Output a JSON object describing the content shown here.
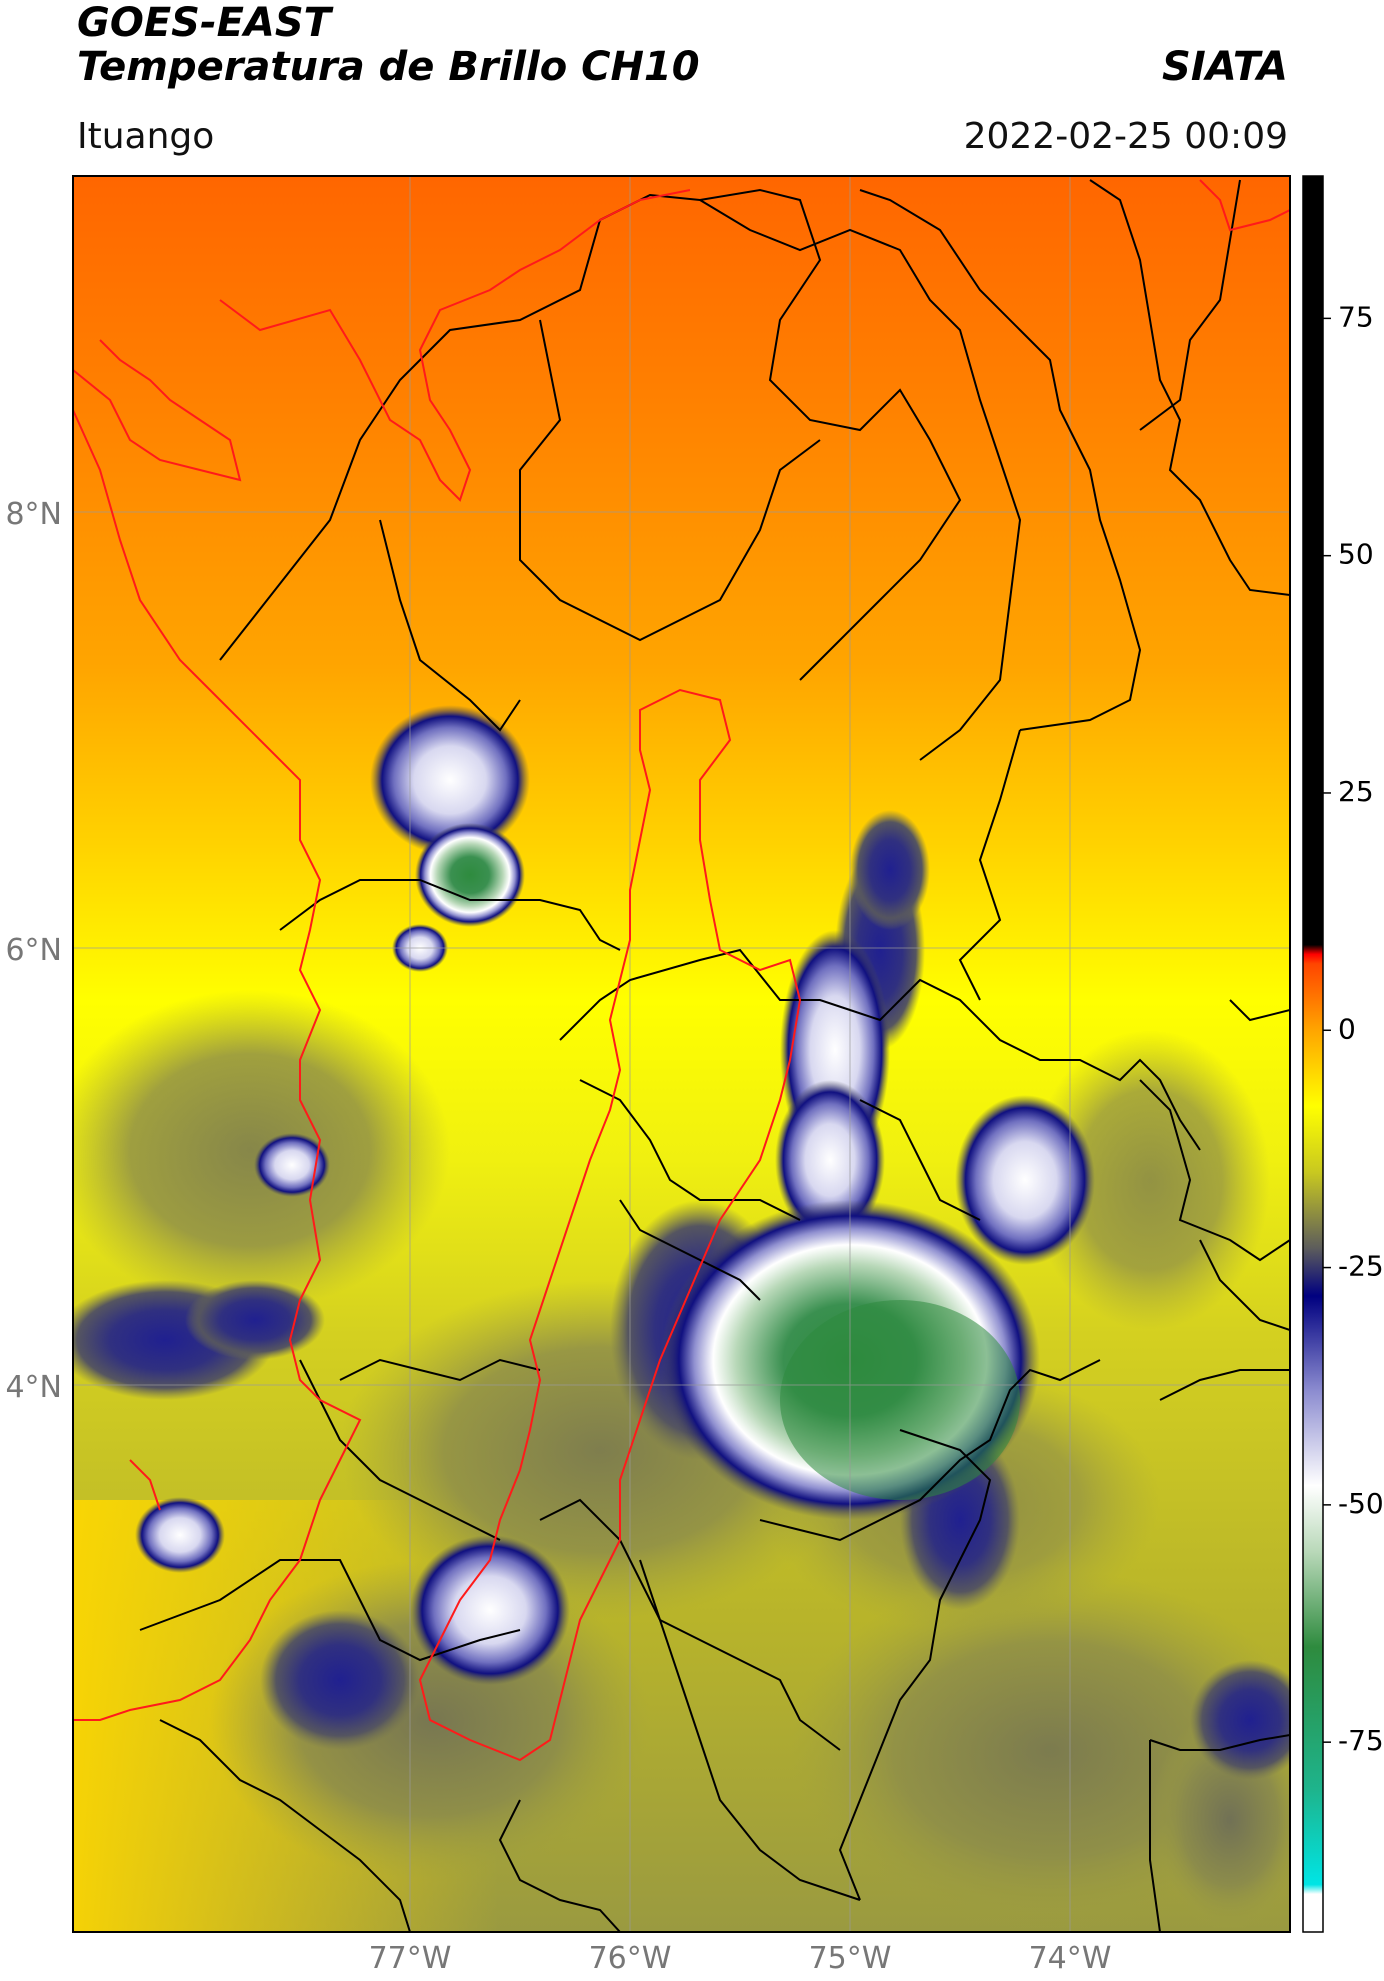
{
  "header": {
    "satellite": "GOES-EAST",
    "product": "Temperatura de Brillo CH10",
    "brand": "SIATA",
    "location": "Ituango",
    "datetime": "2022-02-25 00:09"
  },
  "map": {
    "extent": {
      "lon_min": -78.55,
      "lon_max": -72.95,
      "lat_min": 1.55,
      "lat_max": 9.55
    },
    "lat_ticks": [
      {
        "value": 8,
        "label": "8°N"
      },
      {
        "value": 6,
        "label": "6°N"
      },
      {
        "value": 4,
        "label": "4°N"
      }
    ],
    "lon_ticks": [
      {
        "value": -77,
        "label": "77°W"
      },
      {
        "value": -76,
        "label": "76°W"
      },
      {
        "value": -75,
        "label": "75°W"
      },
      {
        "value": -74,
        "label": "74°W"
      }
    ],
    "gridlines": true,
    "colors": {
      "coast": "#ff1a1a",
      "borders": "#000000",
      "grid": "#9a9a9a"
    }
  },
  "colorbar": {
    "range": [
      -95,
      90
    ],
    "ticks": [
      {
        "value": 75,
        "label": "75"
      },
      {
        "value": 50,
        "label": "50"
      },
      {
        "value": 25,
        "label": "25"
      },
      {
        "value": 0,
        "label": "0"
      },
      {
        "value": -25,
        "label": "-25"
      },
      {
        "value": -50,
        "label": "-50"
      },
      {
        "value": -75,
        "label": "-75"
      }
    ],
    "stops": [
      {
        "value": -95,
        "color": "#ffffff"
      },
      {
        "value": -91,
        "color": "#ffffff"
      },
      {
        "value": -90,
        "color": "#00e5e5"
      },
      {
        "value": -80,
        "color": "#1eb48c"
      },
      {
        "value": -65,
        "color": "#2e8b3e"
      },
      {
        "value": -55,
        "color": "#b8d8b8"
      },
      {
        "value": -48,
        "color": "#ffffff"
      },
      {
        "value": -38,
        "color": "#8c8cd0"
      },
      {
        "value": -28,
        "color": "#000080"
      },
      {
        "value": -23,
        "color": "#5c5c5c"
      },
      {
        "value": -15,
        "color": "#c8c820"
      },
      {
        "value": -8,
        "color": "#ffff00"
      },
      {
        "value": 0,
        "color": "#ffa500"
      },
      {
        "value": 7,
        "color": "#ff4500"
      },
      {
        "value": 8,
        "color": "#ff0000"
      },
      {
        "value": 9,
        "color": "#000000"
      },
      {
        "value": 90,
        "color": "#000000"
      }
    ]
  }
}
